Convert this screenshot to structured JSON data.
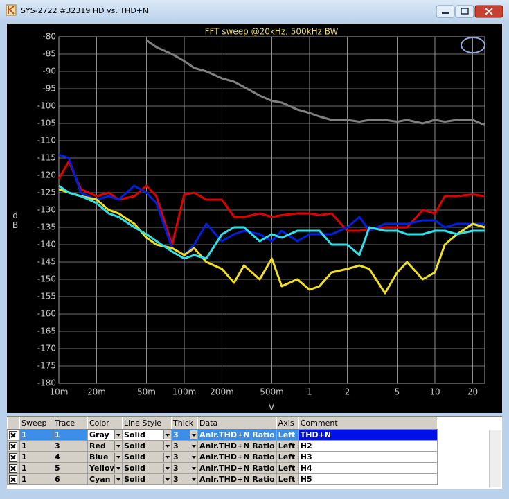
{
  "window": {
    "title": "SYS-2722 #32319 HD vs. THD+N"
  },
  "chart_data": {
    "type": "line",
    "title": "FFT sweep @20kHz, 500kHz BW",
    "xlabel": "V",
    "ylabel": "dB",
    "xscale": "log",
    "grid": true,
    "xlim": [
      0.01,
      25
    ],
    "ylim": [
      -180,
      -80
    ],
    "xticks": [
      {
        "value": 0.01,
        "label": "10m"
      },
      {
        "value": 0.02,
        "label": "20m"
      },
      {
        "value": 0.05,
        "label": "50m"
      },
      {
        "value": 0.1,
        "label": "100m"
      },
      {
        "value": 0.2,
        "label": "200m"
      },
      {
        "value": 0.5,
        "label": "500m"
      },
      1,
      2,
      5,
      10,
      20
    ],
    "yticks": [
      -80,
      -85,
      -90,
      -95,
      -100,
      -105,
      -110,
      -115,
      -120,
      -125,
      -130,
      -135,
      -140,
      -145,
      -150,
      -155,
      -160,
      -165,
      -170,
      -175,
      -180
    ],
    "x": [
      0.01,
      0.012,
      0.015,
      0.02,
      0.025,
      0.03,
      0.04,
      0.05,
      0.06,
      0.08,
      0.1,
      0.12,
      0.15,
      0.2,
      0.25,
      0.3,
      0.4,
      0.5,
      0.6,
      0.8,
      1,
      1.2,
      1.5,
      2,
      2.5,
      3,
      4,
      5,
      6,
      8,
      10,
      12,
      15,
      20,
      25
    ],
    "series": [
      {
        "color": "#808080",
        "values": [
          null,
          null,
          null,
          null,
          null,
          null,
          null,
          -81,
          -83,
          -85,
          -87,
          -89,
          -90,
          -92,
          -93,
          -94.5,
          -97,
          -98.5,
          -99,
          -101,
          -102,
          -103,
          -104,
          -104,
          -104.5,
          -104,
          -104,
          -104.5,
          -104,
          -105,
          -104,
          -104.5,
          -104,
          -104,
          -105.5
        ]
      },
      {
        "color": "#e00000",
        "values": [
          -121,
          -116,
          -124,
          -126,
          -125,
          -127,
          -126,
          -123,
          -126,
          -140,
          -125.5,
          -125,
          -127,
          -127,
          -132,
          -132,
          -131,
          -132,
          -131.5,
          -131,
          -131,
          -131.5,
          -131,
          -136,
          -136,
          -135.5,
          -135,
          -135,
          -135,
          -130,
          -131,
          -126,
          -126,
          -125.5,
          -126
        ]
      },
      {
        "color": "#0020e0",
        "values": [
          -114,
          -115,
          -125,
          -127,
          -126,
          -127,
          -123,
          -125,
          -128,
          -141,
          -143,
          -140,
          -134,
          -139,
          -137,
          -136,
          -137,
          -139,
          -136,
          -139,
          -137,
          -137,
          -137,
          -135,
          -132,
          -136,
          -134,
          -134,
          -134,
          -133,
          -133,
          -135,
          -134,
          -134,
          -134
        ]
      },
      {
        "color": "#f0e020",
        "values": [
          -124,
          -125,
          -126,
          -127,
          -130,
          -131,
          -134,
          -138,
          -140,
          -141,
          -143,
          -141,
          -145,
          -147,
          -151,
          -146,
          -150,
          -144,
          -152,
          -150,
          -153,
          -152,
          -148,
          -147,
          -146,
          -147,
          -154,
          -148,
          -145,
          -150,
          -148,
          -140,
          -137,
          -134,
          -135
        ]
      },
      {
        "color": "#30e0e8",
        "values": [
          -123,
          -125,
          -126,
          -128,
          -131,
          -132,
          -135,
          -137,
          -139,
          -142,
          -144,
          -143,
          -144,
          -137,
          -135,
          -135,
          -139,
          -137,
          -138,
          -136,
          -136,
          -136,
          -140,
          -140,
          -143,
          -135,
          -136,
          -136,
          -137,
          -137,
          -136,
          -136,
          -137,
          -136,
          -136
        ]
      }
    ]
  },
  "table": {
    "headers": [
      "Sweep",
      "Trace",
      "Color",
      "Line Style",
      "Thick",
      "Data",
      "Axis",
      "Comment"
    ],
    "rows": [
      [
        "1",
        "1",
        "Gray",
        "Solid",
        "3",
        "Anlr.THD+N Ratio",
        "Left",
        "THD+N"
      ],
      [
        "1",
        "3",
        "Red",
        "Solid",
        "3",
        "Anlr.THD+N Ratio",
        "Left",
        "H2"
      ],
      [
        "1",
        "4",
        "Blue",
        "Solid",
        "3",
        "Anlr.THD+N Ratio",
        "Left",
        "H3"
      ],
      [
        "1",
        "5",
        "Yellow",
        "Solid",
        "3",
        "Anlr.THD+N Ratio",
        "Left",
        "H4"
      ],
      [
        "1",
        "6",
        "Cyan",
        "Solid",
        "3",
        "Anlr.THD+N Ratio",
        "Left",
        "H5"
      ]
    ]
  }
}
